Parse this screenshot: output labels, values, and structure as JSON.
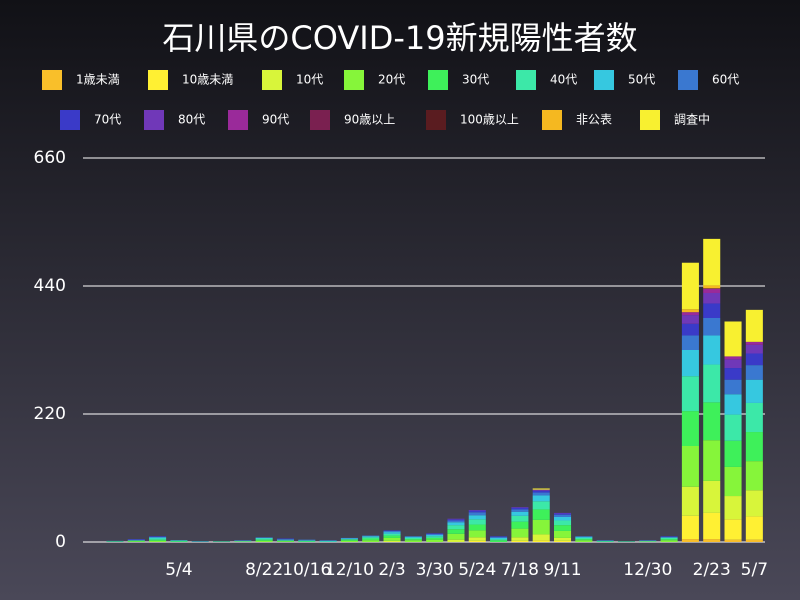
{
  "chart_data": {
    "type": "stacked-bar",
    "title": "石川県のCOVID-19新規陽性者数",
    "categories": [
      null,
      null,
      null,
      null,
      "5/4",
      null,
      null,
      null,
      "8/22",
      null,
      "10/16",
      null,
      "12/10",
      null,
      "2/3",
      null,
      "3/30",
      null,
      "5/24",
      null,
      "7/18",
      null,
      "9/11",
      null,
      null,
      null,
      "12/30",
      null,
      null,
      "2/23",
      null,
      "5/7"
    ],
    "ylim": [
      0,
      660
    ],
    "yticks": [
      0,
      220,
      440,
      660
    ],
    "grid": true,
    "series": [
      {
        "name": "1歳未満",
        "color": "#f9bf2a",
        "values": [
          0,
          0,
          0,
          0,
          0,
          0,
          0,
          0,
          0,
          0,
          0,
          0,
          0,
          0,
          0,
          0,
          0,
          0,
          0,
          0,
          0,
          0,
          0,
          0,
          0,
          0,
          0,
          0,
          5,
          5,
          4,
          4
        ]
      },
      {
        "name": "10歳未満",
        "color": "#fff033",
        "values": [
          0,
          0,
          0,
          0,
          0,
          0,
          0,
          0,
          0,
          0,
          0,
          0,
          0,
          0,
          0,
          0,
          0,
          0,
          2,
          0,
          2,
          3,
          2,
          0,
          0,
          0,
          0,
          0,
          40,
          45,
          35,
          40
        ]
      },
      {
        "name": "10代",
        "color": "#d8f53a",
        "values": [
          0,
          0,
          0,
          0,
          0,
          0,
          0,
          0,
          0,
          0,
          0,
          0,
          0,
          0,
          2,
          0,
          0,
          4,
          6,
          0,
          6,
          10,
          5,
          0,
          0,
          0,
          0,
          0,
          50,
          55,
          40,
          45
        ]
      },
      {
        "name": "20代",
        "color": "#86f53a",
        "values": [
          0,
          0,
          1,
          2,
          0,
          0,
          0,
          1,
          2,
          1,
          0,
          0,
          2,
          3,
          5,
          3,
          4,
          10,
          12,
          0,
          15,
          25,
          12,
          3,
          0,
          0,
          1,
          3,
          70,
          70,
          50,
          50
        ]
      },
      {
        "name": "30代",
        "color": "#3ef05a",
        "values": [
          0,
          1,
          1,
          2,
          1,
          0,
          0,
          0,
          2,
          1,
          1,
          0,
          2,
          3,
          4,
          2,
          3,
          8,
          10,
          3,
          12,
          18,
          10,
          2,
          1,
          0,
          0,
          2,
          60,
          65,
          45,
          50
        ]
      },
      {
        "name": "40代",
        "color": "#3ce8a8",
        "values": [
          0,
          0,
          1,
          2,
          1,
          0,
          1,
          0,
          2,
          1,
          1,
          1,
          1,
          2,
          3,
          2,
          3,
          7,
          9,
          2,
          10,
          14,
          8,
          2,
          0,
          1,
          0,
          2,
          60,
          65,
          45,
          50
        ]
      },
      {
        "name": "50代",
        "color": "#36c8e0",
        "values": [
          0,
          0,
          0,
          2,
          1,
          1,
          0,
          1,
          1,
          1,
          1,
          1,
          1,
          2,
          3,
          2,
          2,
          5,
          7,
          2,
          7,
          10,
          6,
          2,
          1,
          0,
          1,
          1,
          45,
          50,
          35,
          40
        ]
      },
      {
        "name": "60代",
        "color": "#3a78d0",
        "values": [
          0,
          1,
          1,
          1,
          0,
          0,
          0,
          1,
          1,
          1,
          1,
          1,
          1,
          1,
          2,
          1,
          2,
          3,
          5,
          2,
          4,
          5,
          4,
          1,
          1,
          0,
          1,
          1,
          25,
          30,
          25,
          25
        ]
      },
      {
        "name": "70代",
        "color": "#3a3ac8",
        "values": [
          0,
          0,
          1,
          1,
          0,
          0,
          0,
          0,
          0,
          1,
          0,
          0,
          0,
          0,
          1,
          0,
          1,
          2,
          3,
          1,
          3,
          3,
          2,
          0,
          0,
          0,
          0,
          1,
          20,
          25,
          20,
          20
        ]
      },
      {
        "name": "80代",
        "color": "#7038b8",
        "values": [
          0,
          0,
          0,
          0,
          0,
          0,
          0,
          0,
          0,
          0,
          0,
          0,
          0,
          0,
          0,
          0,
          0,
          1,
          1,
          0,
          1,
          2,
          1,
          0,
          0,
          0,
          0,
          0,
          15,
          18,
          15,
          15
        ]
      },
      {
        "name": "90代",
        "color": "#9a2a9a",
        "values": [
          0,
          0,
          0,
          0,
          0,
          0,
          0,
          0,
          0,
          0,
          0,
          0,
          0,
          0,
          0,
          0,
          0,
          0,
          0,
          0,
          0,
          0,
          0,
          0,
          0,
          0,
          0,
          0,
          5,
          7,
          5,
          5
        ]
      },
      {
        "name": "90歳以上",
        "color": "#7a2050",
        "values": [
          0,
          0,
          0,
          0,
          0,
          0,
          0,
          0,
          0,
          0,
          0,
          0,
          0,
          0,
          0,
          0,
          0,
          0,
          0,
          0,
          0,
          0,
          0,
          0,
          0,
          0,
          0,
          0,
          0,
          1,
          0,
          0
        ]
      },
      {
        "name": "100歳以上",
        "color": "#5a1c20",
        "values": [
          0,
          0,
          0,
          0,
          0,
          0,
          0,
          0,
          0,
          0,
          0,
          0,
          0,
          0,
          0,
          0,
          0,
          0,
          0,
          0,
          0,
          0,
          0,
          0,
          0,
          0,
          0,
          0,
          0,
          0,
          0,
          0
        ]
      },
      {
        "name": "非公表",
        "color": "#f5b820",
        "values": [
          0,
          0,
          0,
          0,
          0,
          0,
          0,
          0,
          0,
          0,
          0,
          0,
          0,
          0,
          0,
          0,
          0,
          0,
          0,
          0,
          0,
          0,
          0,
          0,
          0,
          0,
          0,
          0,
          5,
          5,
          0,
          0
        ]
      },
      {
        "name": "調査中",
        "color": "#f8f030",
        "values": [
          0,
          0,
          0,
          0,
          0,
          0,
          0,
          0,
          0,
          0,
          0,
          0,
          0,
          0,
          0,
          0,
          0,
          0,
          0,
          0,
          0,
          2,
          0,
          0,
          0,
          0,
          0,
          0,
          80,
          80,
          60,
          55
        ]
      }
    ]
  }
}
